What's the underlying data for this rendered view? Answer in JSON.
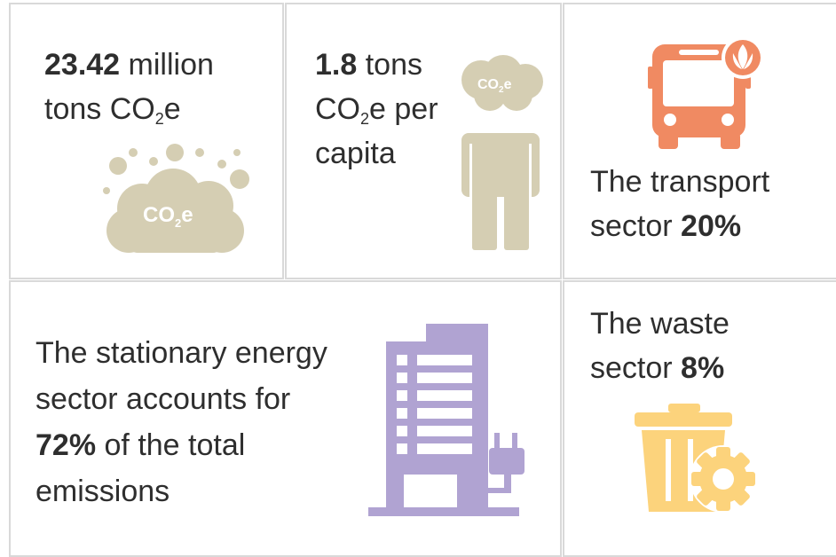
{
  "tiles": [
    {
      "value": "23.42",
      "text": "million tons CO",
      "sub": "2",
      "suffix": "e",
      "icon": {
        "text": "CO",
        "sub": "2",
        "suffix": "e"
      }
    },
    {
      "value": "1.8",
      "text": "tons CO",
      "sub": "2",
      "suffix": "e per capita",
      "icon": {
        "text": "CO",
        "sub": "2",
        "suffix": "e"
      }
    },
    {
      "text": "The transport sector",
      "value": "20%"
    },
    {
      "text": "The stationary energy sector accounts for",
      "value": "72%",
      "suffix": "of the total emissions"
    },
    {
      "text": "The waste sector",
      "value": "8%"
    }
  ]
}
